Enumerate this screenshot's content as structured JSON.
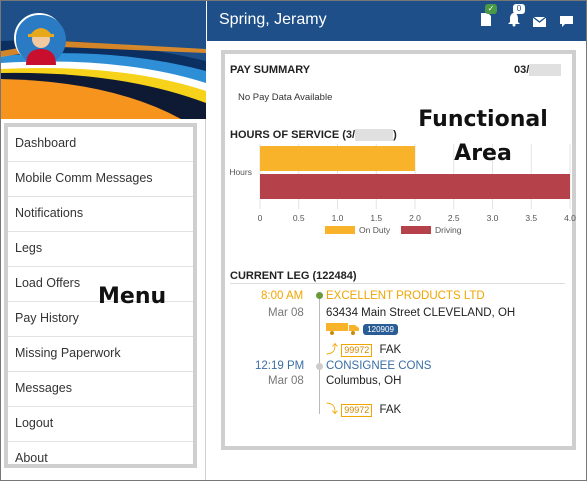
{
  "header": {
    "title": "Spring, Jeramy",
    "notification_count": "0"
  },
  "menu": {
    "items": [
      {
        "label": "Dashboard"
      },
      {
        "label": "Mobile Comm Messages"
      },
      {
        "label": "Notifications"
      },
      {
        "label": "Legs"
      },
      {
        "label": "Load Offers"
      },
      {
        "label": "Pay History"
      },
      {
        "label": "Missing Paperwork"
      },
      {
        "label": "Messages"
      },
      {
        "label": "Logout"
      },
      {
        "label": "About"
      }
    ],
    "overlay_label": "Menu"
  },
  "functional_area_label_line1": "Functional",
  "functional_area_label_line2": "Area",
  "pay_summary": {
    "title": "PAY SUMMARY",
    "date_prefix": "03/",
    "empty_text": "No Pay Data Available"
  },
  "hours_of_service": {
    "title_prefix": "HOURS OF SERVICE (3/",
    "title_suffix": ")"
  },
  "chart_data": {
    "type": "bar",
    "orientation": "horizontal",
    "categories": [
      "Hours"
    ],
    "series": [
      {
        "name": "On Duty",
        "values": [
          2.0
        ],
        "color": "#f9b32a"
      },
      {
        "name": "Driving",
        "values": [
          4.0
        ],
        "color": "#b5424b"
      }
    ],
    "xlim": [
      0,
      4.0
    ],
    "xticks": [
      "0",
      "0.5",
      "1.0",
      "1.5",
      "2.0",
      "2.5",
      "3.0",
      "3.5",
      "4.0"
    ],
    "grid": true,
    "legend": "bottom"
  },
  "current_leg": {
    "title": "CURRENT LEG (122484)",
    "stops": [
      {
        "time": "8:00 AM",
        "date": "Mar 08",
        "name": "EXCELLENT PRODUCTS LTD",
        "address": "63434 Main Street CLEVELAND, OH",
        "trailer": "120909",
        "tag": "99972",
        "commodity": "FAK",
        "color": "#f0a500"
      },
      {
        "time": "12:19 PM",
        "date": "Mar 08",
        "name": "CONSIGNEE CONS",
        "address": "Columbus, OH",
        "tag": "99972",
        "commodity": "FAK",
        "color": "#3a6ea5"
      }
    ]
  },
  "colors": {
    "header": "#1e4f88",
    "accent_orange": "#f0a500",
    "accent_blue": "#3a6ea5"
  },
  "icons": [
    "document-icon",
    "bell-icon",
    "mail-icon",
    "chat-icon",
    "check-icon",
    "truck-icon",
    "pickup-arrow-icon",
    "drop-arrow-icon"
  ]
}
